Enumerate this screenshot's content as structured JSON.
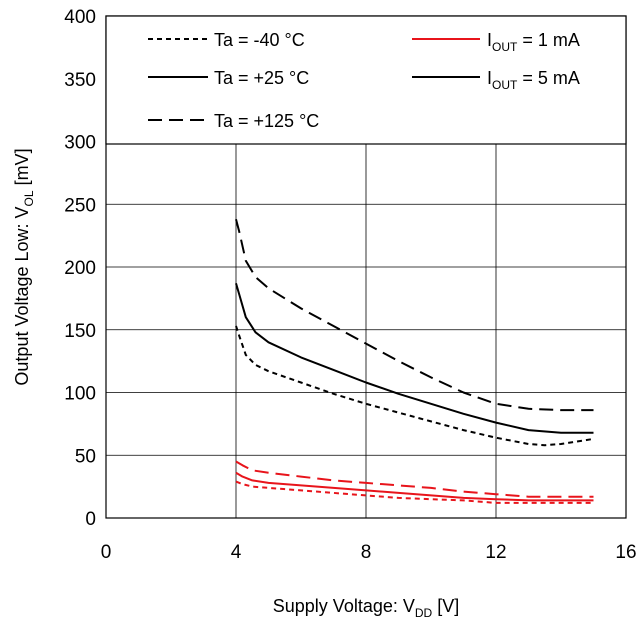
{
  "chart_data": {
    "type": "line",
    "xlabel": "Supply Voltage: V",
    "xlabel_sub": "DD",
    "xlabel_unit": " [V]",
    "ylabel": "Output Voltage Low: V",
    "ylabel_sub": "OL",
    "ylabel_unit": " [mV]",
    "xlim": [
      0,
      16
    ],
    "ylim": [
      0,
      400
    ],
    "xticks": [
      0,
      4,
      8,
      12,
      16
    ],
    "yticks": [
      0,
      50,
      100,
      150,
      200,
      250,
      300,
      350,
      400
    ],
    "grid": true,
    "legend_position": "top (inside plot area, spanning full width)",
    "legend": {
      "temperatures": [
        {
          "label": "Ta = -40 °C",
          "style": "dotted"
        },
        {
          "label": "Ta = +25 °C",
          "style": "solid"
        },
        {
          "label": "Ta = +125 °C",
          "style": "dashed"
        }
      ],
      "currents": [
        {
          "prefix": "I",
          "sub": "OUT",
          "suffix": " = 1 mA",
          "color": "#e8141b"
        },
        {
          "prefix": "I",
          "sub": "OUT",
          "suffix": " = 5 mA",
          "color": "#000000"
        }
      ]
    },
    "series": [
      {
        "temperature": "Ta = -40 °C",
        "current": "1 mA",
        "color": "#e8141b",
        "style": "dotted",
        "points": [
          [
            4.0,
            29
          ],
          [
            4.2,
            27
          ],
          [
            4.5,
            25
          ],
          [
            5,
            24
          ],
          [
            6,
            22
          ],
          [
            7,
            20
          ],
          [
            8,
            18
          ],
          [
            9,
            16
          ],
          [
            10,
            15
          ],
          [
            11,
            14
          ],
          [
            12,
            12
          ],
          [
            13,
            12
          ],
          [
            14,
            12
          ],
          [
            15,
            12
          ]
        ]
      },
      {
        "temperature": "Ta = +25 °C",
        "current": "1 mA",
        "color": "#e8141b",
        "style": "solid",
        "points": [
          [
            4.0,
            36
          ],
          [
            4.2,
            33
          ],
          [
            4.5,
            30
          ],
          [
            5,
            28
          ],
          [
            6,
            26
          ],
          [
            7,
            24
          ],
          [
            8,
            22
          ],
          [
            9,
            20
          ],
          [
            10,
            18
          ],
          [
            11,
            16
          ],
          [
            12,
            15
          ],
          [
            13,
            14
          ],
          [
            14,
            14
          ],
          [
            15,
            14
          ]
        ]
      },
      {
        "temperature": "Ta = +125 °C",
        "current": "1 mA",
        "color": "#e8141b",
        "style": "dashed",
        "points": [
          [
            4.0,
            45
          ],
          [
            4.2,
            42
          ],
          [
            4.5,
            38
          ],
          [
            5,
            36
          ],
          [
            6,
            33
          ],
          [
            7,
            30
          ],
          [
            8,
            28
          ],
          [
            9,
            26
          ],
          [
            10,
            24
          ],
          [
            11,
            21
          ],
          [
            12,
            19
          ],
          [
            13,
            17
          ],
          [
            14,
            17
          ],
          [
            15,
            17
          ]
        ]
      },
      {
        "temperature": "Ta = -40 °C",
        "current": "5 mA",
        "color": "#000000",
        "style": "dotted",
        "points": [
          [
            4.0,
            153
          ],
          [
            4.1,
            145
          ],
          [
            4.3,
            130
          ],
          [
            4.6,
            122
          ],
          [
            5,
            117
          ],
          [
            6,
            108
          ],
          [
            7,
            99
          ],
          [
            8,
            91
          ],
          [
            9,
            84
          ],
          [
            10,
            77
          ],
          [
            11,
            70
          ],
          [
            12,
            64
          ],
          [
            13,
            59
          ],
          [
            13.5,
            58
          ],
          [
            14,
            59
          ],
          [
            15,
            63
          ]
        ]
      },
      {
        "temperature": "Ta = +25 °C",
        "current": "5 mA",
        "color": "#000000",
        "style": "solid",
        "points": [
          [
            4.0,
            187
          ],
          [
            4.1,
            178
          ],
          [
            4.3,
            160
          ],
          [
            4.6,
            148
          ],
          [
            5,
            140
          ],
          [
            6,
            128
          ],
          [
            7,
            118
          ],
          [
            8,
            108
          ],
          [
            9,
            99
          ],
          [
            10,
            91
          ],
          [
            11,
            83
          ],
          [
            12,
            76
          ],
          [
            13,
            70
          ],
          [
            14,
            68
          ],
          [
            15,
            68
          ]
        ]
      },
      {
        "temperature": "Ta = +125 °C",
        "current": "5 mA",
        "color": "#000000",
        "style": "dashed",
        "points": [
          [
            4.0,
            238
          ],
          [
            4.1,
            228
          ],
          [
            4.3,
            205
          ],
          [
            4.6,
            192
          ],
          [
            5,
            183
          ],
          [
            6,
            167
          ],
          [
            7,
            153
          ],
          [
            8,
            139
          ],
          [
            9,
            125
          ],
          [
            10,
            112
          ],
          [
            11,
            100
          ],
          [
            12,
            91
          ],
          [
            13,
            87
          ],
          [
            14,
            86
          ],
          [
            15,
            86
          ]
        ]
      }
    ]
  }
}
